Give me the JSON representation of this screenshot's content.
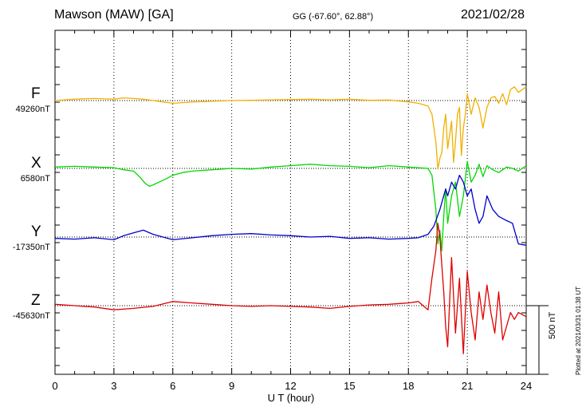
{
  "header": {
    "title": "Mawson (MAW)  [GA]",
    "coords": "GG (-67.60°,  62.88°)",
    "date": "2021/02/28"
  },
  "plotted": "Plotted at 2021/03/31 01:38 UT",
  "colors": {
    "F": "#f0b000",
    "X": "#00d800",
    "Y": "#0000cc",
    "Z": "#e00000"
  },
  "chart_data": {
    "type": "line",
    "xlabel": "U T (hour)",
    "xlim": [
      0,
      24
    ],
    "xticks": [
      "0",
      "3",
      "6",
      "9",
      "12",
      "15",
      "18",
      "21",
      "24"
    ],
    "scale_bar": {
      "label": "500 nT",
      "value": 500
    },
    "channels": [
      {
        "letter": "F",
        "base": "49260nT",
        "x": [
          0,
          1,
          2,
          3,
          3.5,
          4,
          4.5,
          5,
          5.5,
          6,
          6.5,
          7,
          8,
          9,
          10,
          11,
          12,
          13,
          14,
          15,
          16,
          17,
          18,
          18.5,
          19,
          19.2,
          19.4,
          19.5,
          19.6,
          19.7,
          19.8,
          19.9,
          20,
          20.1,
          20.2,
          20.3,
          20.4,
          20.5,
          20.6,
          20.7,
          20.8,
          20.9,
          21,
          21.2,
          21.4,
          21.6,
          21.8,
          22,
          22.2,
          22.4,
          22.6,
          22.8,
          23,
          23.2,
          23.4,
          23.6,
          23.8,
          24
        ],
        "y": [
          0,
          10,
          15,
          10,
          20,
          15,
          10,
          0,
          -10,
          -20,
          -15,
          -10,
          -5,
          0,
          2,
          5,
          7,
          10,
          5,
          10,
          2,
          4,
          -10,
          -20,
          -40,
          -100,
          -300,
          -500,
          -420,
          -380,
          -200,
          -100,
          -350,
          -250,
          -150,
          -450,
          -300,
          -100,
          -50,
          -400,
          -200,
          -100,
          50,
          -100,
          20,
          -50,
          -200,
          -50,
          20,
          30,
          -20,
          50,
          -30,
          80,
          100,
          60,
          80,
          100
        ]
      },
      {
        "letter": "X",
        "base": "6580nT",
        "x": [
          0,
          1,
          2,
          3,
          3.5,
          4,
          4.3,
          4.6,
          4.8,
          5,
          5.3,
          5.6,
          6,
          6.5,
          7,
          8,
          9,
          10,
          11,
          12,
          13,
          14,
          15,
          16,
          17,
          18,
          18.5,
          19,
          19.2,
          19.4,
          19.5,
          19.6,
          19.7,
          19.8,
          19.9,
          20,
          20.2,
          20.4,
          20.6,
          20.8,
          21,
          21.2,
          21.4,
          21.6,
          21.8,
          22,
          22.3,
          22.6,
          23,
          23.3,
          23.6,
          24
        ],
        "y": [
          10,
          15,
          10,
          5,
          -10,
          -20,
          -60,
          -110,
          -130,
          -120,
          -100,
          -80,
          -50,
          -30,
          -20,
          -10,
          0,
          -5,
          10,
          20,
          30,
          20,
          15,
          5,
          20,
          10,
          5,
          0,
          -50,
          -300,
          -550,
          -450,
          -600,
          -350,
          -150,
          -400,
          -200,
          -100,
          -350,
          -200,
          50,
          -100,
          -50,
          30,
          -60,
          20,
          -10,
          -30,
          10,
          0,
          -20,
          20
        ]
      },
      {
        "letter": "Y",
        "base": "-17350nT",
        "x": [
          0,
          1,
          2,
          3,
          3.5,
          4,
          4.5,
          5,
          5.5,
          6,
          7,
          8,
          9,
          10,
          11,
          12,
          13,
          14,
          15,
          16,
          17,
          18,
          18.5,
          19,
          19.3,
          19.6,
          19.9,
          20,
          20.2,
          20.4,
          20.6,
          20.8,
          21,
          21.2,
          21.4,
          21.6,
          21.8,
          22,
          22.3,
          22.6,
          23,
          23.3,
          23.6,
          24
        ],
        "y": [
          -10,
          -15,
          -5,
          -20,
          10,
          30,
          50,
          20,
          0,
          -20,
          -5,
          10,
          20,
          25,
          15,
          10,
          0,
          5,
          -10,
          -5,
          -15,
          -10,
          -5,
          20,
          80,
          200,
          350,
          300,
          400,
          350,
          450,
          400,
          300,
          350,
          200,
          100,
          150,
          300,
          200,
          150,
          120,
          100,
          -50,
          -60
        ]
      },
      {
        "letter": "Z",
        "base": "-45630nT",
        "x": [
          0,
          1,
          2,
          3,
          4,
          5,
          6,
          7,
          8,
          9,
          10,
          11,
          12,
          13,
          14,
          15,
          16,
          17,
          18,
          18.5,
          19,
          19.2,
          19.4,
          19.5,
          19.6,
          19.7,
          19.8,
          19.9,
          20,
          20.2,
          20.4,
          20.6,
          20.8,
          21,
          21.2,
          21.4,
          21.6,
          21.8,
          22,
          22.2,
          22.4,
          22.6,
          22.8,
          23,
          23.2,
          23.4,
          23.6,
          24
        ],
        "y": [
          10,
          0,
          -10,
          -30,
          -20,
          -5,
          30,
          20,
          10,
          0,
          -5,
          0,
          -5,
          -10,
          -20,
          -5,
          5,
          10,
          20,
          30,
          -30,
          200,
          400,
          600,
          500,
          300,
          100,
          -150,
          -300,
          350,
          -200,
          200,
          -350,
          250,
          -50,
          -250,
          100,
          -100,
          150,
          -50,
          -200,
          100,
          -250,
          -150,
          -50,
          -100,
          -50,
          -80
        ]
      }
    ]
  }
}
